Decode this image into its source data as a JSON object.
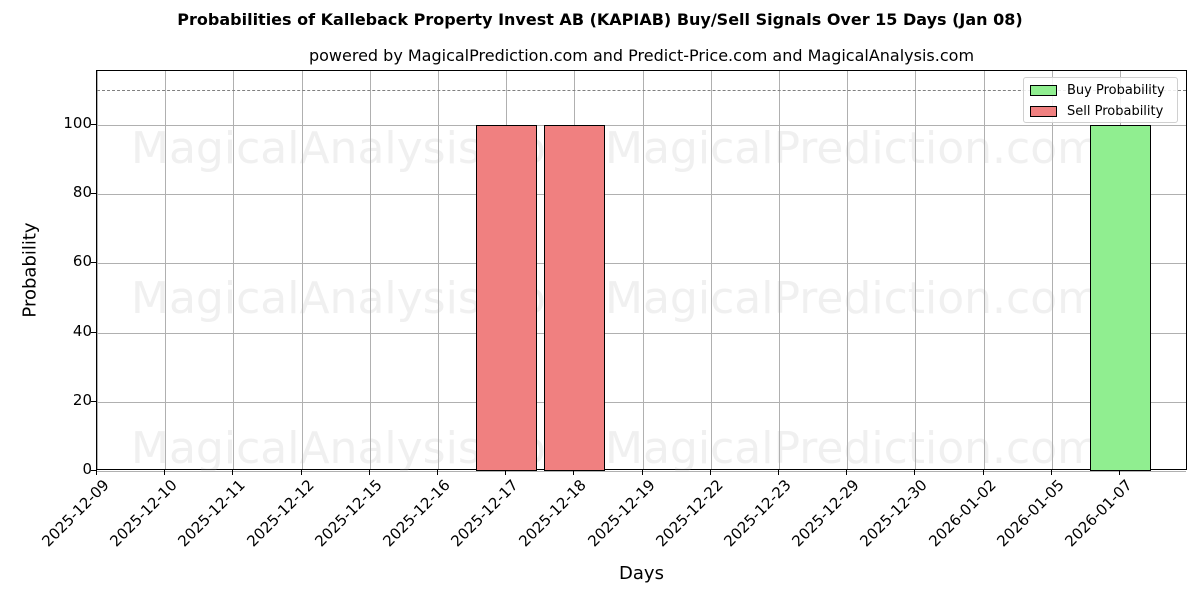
{
  "title": "Probabilities of Kalleback Property Invest AB (KAPIAB) Buy/Sell Signals Over 15 Days (Jan 08)",
  "subtitle": "powered by MagicalPrediction.com and Predict-Price.com and MagicalAnalysis.com",
  "watermarks": [
    "MagicalAnalysis.com",
    "MagicalPrediction.com"
  ],
  "legend": {
    "buy_label": "Buy Probability",
    "sell_label": "Sell Probability"
  },
  "colors": {
    "buy": "#90ee90",
    "sell": "#f08080",
    "threshold": "#808080"
  },
  "chart_data": {
    "type": "bar",
    "title": "Probabilities of Kalleback Property Invest AB (KAPIAB) Buy/Sell Signals Over 15 Days (Jan 08)",
    "subtitle": "powered by MagicalPrediction.com and Predict-Price.com and MagicalAnalysis.com",
    "xlabel": "Days",
    "ylabel": "Probability",
    "ylim": [
      0,
      115
    ],
    "yticks": [
      0,
      20,
      40,
      60,
      80,
      100
    ],
    "grid": true,
    "legend_position": "upper right",
    "threshold_line": 110,
    "categories": [
      "2025-12-09",
      "2025-12-10",
      "2025-12-11",
      "2025-12-12",
      "2025-12-15",
      "2025-12-16",
      "2025-12-17",
      "2025-12-18",
      "2025-12-19",
      "2025-12-22",
      "2025-12-23",
      "2025-12-29",
      "2025-12-30",
      "2026-01-02",
      "2026-01-05",
      "2026-01-07"
    ],
    "series": [
      {
        "name": "Buy Probability",
        "color": "#90ee90",
        "values": [
          0,
          0,
          0,
          0,
          0,
          0,
          0,
          0,
          0,
          0,
          0,
          0,
          0,
          0,
          0,
          100
        ]
      },
      {
        "name": "Sell Probability",
        "color": "#f08080",
        "values": [
          0,
          0,
          0,
          0,
          0,
          0,
          100,
          100,
          0,
          0,
          0,
          0,
          0,
          0,
          0,
          0
        ]
      }
    ]
  }
}
